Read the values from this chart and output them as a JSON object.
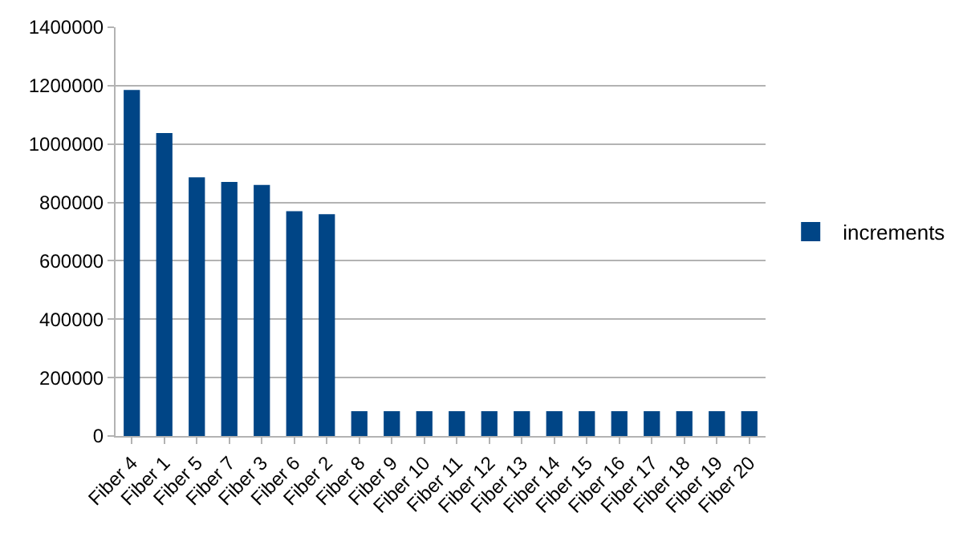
{
  "chart_data": {
    "type": "bar",
    "categories": [
      "Fiber 4",
      "Fiber 1",
      "Fiber 5",
      "Fiber 7",
      "Fiber 3",
      "Fiber 6",
      "Fiber 2",
      "Fiber 8",
      "Fiber 9",
      "Fiber 10",
      "Fiber 11",
      "Fiber 12",
      "Fiber 13",
      "Fiber 14",
      "Fiber 15",
      "Fiber 16",
      "Fiber 17",
      "Fiber 18",
      "Fiber 19",
      "Fiber 20"
    ],
    "series": [
      {
        "name": "increments",
        "color": "#004586",
        "values": [
          1185000,
          1038000,
          886000,
          870000,
          860000,
          770000,
          760000,
          85000,
          85000,
          85000,
          85000,
          85000,
          85000,
          85000,
          85000,
          85000,
          85000,
          85000,
          85000,
          85000
        ]
      }
    ],
    "ylim": [
      0,
      1400000
    ],
    "yticks": [
      0,
      200000,
      400000,
      600000,
      800000,
      1000000,
      1200000,
      1400000
    ],
    "grid": "y",
    "legend": "right"
  }
}
